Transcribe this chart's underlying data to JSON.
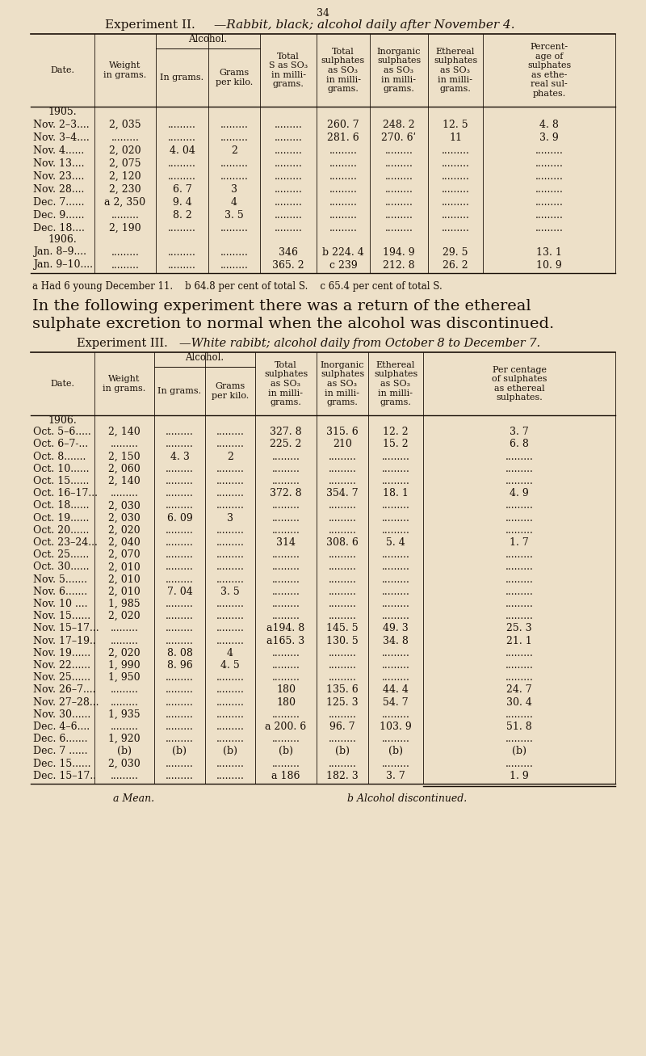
{
  "bg_color": "#ede0c8",
  "text_color": "#1a1008",
  "page_title_normal": "Experiment II.",
  "page_title_italic": "—Rabbit, black; alcohol daily after November 4.",
  "table1_rows": [
    [
      "1905.",
      "",
      "",
      "",
      "",
      "",
      "",
      "",
      ""
    ],
    [
      "Nov. 2–3....",
      "2, 035",
      ".........",
      ".........",
      ".........",
      "260. 7",
      "248. 2",
      "12. 5",
      "4. 8"
    ],
    [
      "Nov. 3–4....",
      ".........",
      ".........",
      ".........",
      ".........",
      "281. 6",
      "270. 6ʹ",
      "11",
      "3. 9"
    ],
    [
      "Nov. 4......",
      "2, 020",
      "4. 04",
      "2",
      ".........",
      ".........",
      ".........",
      ".........",
      "........."
    ],
    [
      "Nov. 13....",
      "2, 075",
      ".........",
      ".........",
      ".........",
      ".........",
      ".........",
      ".........",
      "........."
    ],
    [
      "Nov. 23....",
      "2, 120",
      ".........",
      ".........",
      ".........",
      ".........",
      ".........",
      ".........",
      "........."
    ],
    [
      "Nov. 28....",
      "2, 230",
      "6. 7",
      "3",
      ".........",
      ".........",
      ".........",
      ".........",
      "........."
    ],
    [
      "Dec. 7......",
      "a 2, 350",
      "9. 4",
      "4",
      ".........",
      ".........",
      ".........",
      ".........",
      "........."
    ],
    [
      "Dec. 9......",
      ".........",
      "8. 2",
      "3. 5",
      ".........",
      ".........",
      ".........",
      ".........",
      "........."
    ],
    [
      "Dec. 18....",
      "2, 190",
      ".........",
      ".........",
      ".........",
      ".........",
      ".........",
      ".........",
      "........."
    ],
    [
      "1906.",
      "",
      "",
      "",
      "",
      "",
      "",
      "",
      ""
    ],
    [
      "Jan. 8–9....",
      ".........",
      ".........",
      ".........",
      "346",
      "b 224. 4",
      "194. 9",
      "29. 5",
      "13. 1"
    ],
    [
      "Jan. 9–10....",
      ".........",
      ".........",
      ".........",
      "365. 2",
      "c 239",
      "212. 8",
      "26. 2",
      "10. 9"
    ]
  ],
  "table1_footnote": "a Had 6 young December 11.    b 64.8 per cent of total S.    c 65.4 per cent of total S.",
  "middle_text_line1": "In the following experiment there was a return of the ethereal",
  "middle_text_line2": "sulphate excretion to normal when the alcohol was discontinued.",
  "table2_title_normal": "Experiment III.",
  "table2_title_italic": "—White rabibt; alcohol daily from October 8 to December 7.",
  "table2_rows": [
    [
      "1906.",
      "",
      "",
      "",
      "",
      "",
      "",
      ""
    ],
    [
      "Oct. 5–6.....",
      "2, 140",
      ".........",
      ".........",
      "327. 8",
      "315. 6",
      "12. 2",
      "3. 7"
    ],
    [
      "Oct. 6–7-...",
      ".........",
      ".........",
      ".........",
      "225. 2",
      "210",
      "15. 2",
      "6. 8"
    ],
    [
      "Oct. 8.......",
      "2, 150",
      "4. 3",
      "2",
      ".........",
      ".........",
      ".........",
      "........."
    ],
    [
      "Oct. 10......",
      "2, 060",
      ".........",
      ".........",
      ".........",
      ".........",
      ".........",
      "........."
    ],
    [
      "Oct. 15......",
      "2, 140",
      ".........",
      ".........",
      ".........",
      ".........",
      ".........",
      "........."
    ],
    [
      "Oct. 16–17...",
      ".........",
      ".........",
      ".........",
      "372. 8",
      "354. 7",
      "18. 1",
      "4. 9"
    ],
    [
      "Oct. 18......",
      "2, 030",
      ".........",
      ".........",
      ".........",
      ".........",
      ".........",
      "........."
    ],
    [
      "Oct. 19......",
      "2, 030",
      "6. 09",
      "3",
      ".........",
      ".........",
      ".........",
      "........."
    ],
    [
      "Oct. 20......",
      "2, 020",
      ".........",
      ".........",
      ".........",
      ".........",
      ".........",
      "........."
    ],
    [
      "Oct. 23–24...",
      "2, 040",
      ".........",
      ".........",
      "314",
      "308. 6",
      "5. 4",
      "1. 7"
    ],
    [
      "Oct. 25......",
      "2, 070",
      ".........",
      ".........",
      ".........",
      ".........",
      ".........",
      "........."
    ],
    [
      "Oct. 30......",
      "2, 010",
      ".........",
      ".........",
      ".........",
      ".........",
      ".........",
      "........."
    ],
    [
      "Nov. 5.......",
      "2, 010",
      ".........",
      ".........",
      ".........",
      ".........",
      ".........",
      "........."
    ],
    [
      "Nov. 6.......",
      "2, 010",
      "7. 04",
      "3. 5",
      ".........",
      ".........",
      ".........",
      "........."
    ],
    [
      "Nov. 10 ....",
      "1, 985",
      ".........",
      ".........",
      ".........",
      ".........",
      ".........",
      "........."
    ],
    [
      "Nov. 15......",
      "2, 020",
      ".........",
      ".........",
      ".........",
      ".........",
      ".........",
      "........."
    ],
    [
      "Nov. 15–17...",
      ".........",
      ".........",
      ".........",
      "a194. 8",
      "145. 5",
      "49. 3",
      "25. 3"
    ],
    [
      "Nov. 17–19..",
      ".........",
      ".........",
      ".........",
      "a165. 3",
      "130. 5",
      "34. 8",
      "21. 1"
    ],
    [
      "Nov. 19......",
      "2, 020",
      "8. 08",
      "4",
      ".........",
      ".........",
      ".........",
      "........."
    ],
    [
      "Nov. 22......",
      "1, 990",
      "8. 96",
      "4. 5",
      ".........",
      ".........",
      ".........",
      "........."
    ],
    [
      "Nov. 25......",
      "1, 950",
      ".........",
      ".........",
      ".........",
      ".........",
      ".........",
      "........."
    ],
    [
      "Nov. 26–7....",
      ".........",
      ".........",
      ".........",
      "180",
      "135. 6",
      "44. 4",
      "24. 7"
    ],
    [
      "Nov. 27–28...",
      ".........",
      ".........",
      ".........",
      "180",
      "125. 3",
      "54. 7",
      "30. 4"
    ],
    [
      "Nov. 30......",
      "1, 935",
      ".........",
      ".........",
      ".........",
      ".........",
      ".........",
      "........."
    ],
    [
      "Dec. 4–6....",
      ".........",
      ".........",
      ".........",
      "a 200. 6",
      "96. 7",
      "103. 9",
      "51. 8"
    ],
    [
      "Dec. 6.......",
      "1, 920",
      ".........",
      ".........",
      ".........",
      ".........",
      ".........",
      "........."
    ],
    [
      "Dec. 7 ......",
      "(b)",
      "(b)",
      "(b)",
      "(b)",
      "(b)",
      "(b)",
      "(b)"
    ],
    [
      "Dec. 15......",
      "2, 030",
      ".........",
      ".........",
      ".........",
      ".........",
      ".........",
      "........."
    ],
    [
      "Dec. 15–17..",
      ".........",
      ".........",
      ".........",
      "a 186",
      "182. 3",
      "3. 7",
      "1. 9"
    ]
  ],
  "table2_footnote1": "a Mean.",
  "table2_footnote2": "b Alcohol discontinued."
}
